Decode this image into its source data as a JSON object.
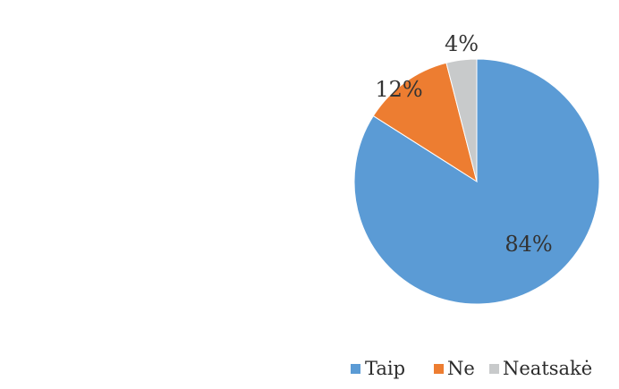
{
  "chart_data": {
    "type": "pie",
    "categories": [
      "Taip",
      "Ne",
      "Neatsakė"
    ],
    "values": [
      84,
      12,
      4
    ],
    "data_labels": [
      "84%",
      "12%",
      "4%"
    ],
    "colors": [
      "#5b9bd5",
      "#ed7d31",
      "#c8cacb"
    ],
    "legend": {
      "position": "bottom",
      "items": [
        "Taip",
        "Ne",
        "Neatsakė"
      ]
    }
  }
}
